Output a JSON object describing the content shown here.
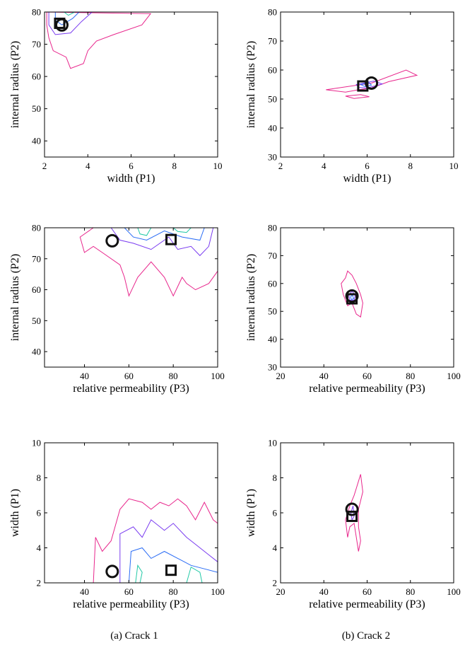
{
  "captions": [
    "(a) Crack 1",
    "(b) Crack 2"
  ],
  "colors": {
    "contour_outer": "#e8268c",
    "contour_mid": "#7a3cf0",
    "contour_inner": "#2a6cf5",
    "contour_core": "#22c9a6",
    "marker": "#111111"
  },
  "chart_data": [
    {
      "type": "contour",
      "panel": "a1",
      "xlabel": "width (P1)",
      "ylabel": "internal radius (P2)",
      "xlim": [
        2,
        10
      ],
      "ylim": [
        35,
        80
      ],
      "xticks": [
        2,
        4,
        6,
        8,
        10
      ],
      "yticks": [
        40,
        50,
        60,
        70,
        80
      ],
      "markers": {
        "circle": [
          2.8,
          76
        ],
        "square": [
          2.7,
          76.5
        ]
      },
      "contours": [
        {
          "level": "outer",
          "points": [
            [
              2.1,
              80
            ],
            [
              6.9,
              79.5
            ],
            [
              6.5,
              76
            ],
            [
              5.2,
              73
            ],
            [
              4.4,
              71
            ],
            [
              4.0,
              68
            ],
            [
              3.8,
              64
            ],
            [
              3.2,
              62.5
            ],
            [
              3.0,
              66
            ],
            [
              2.4,
              68
            ],
            [
              2.2,
              72
            ],
            [
              2.1,
              76
            ]
          ]
        },
        {
          "level": "mid",
          "points": [
            [
              2.2,
              80
            ],
            [
              4.2,
              80
            ],
            [
              3.7,
              77
            ],
            [
              3.2,
              73.5
            ],
            [
              2.5,
              73
            ],
            [
              2.2,
              76
            ]
          ]
        },
        {
          "level": "inner",
          "points": [
            [
              2.5,
              80
            ],
            [
              3.6,
              80
            ],
            [
              3.3,
              78
            ],
            [
              2.8,
              76
            ],
            [
              2.5,
              77.5
            ]
          ]
        },
        {
          "level": "core",
          "points": [
            [
              2.9,
              80
            ],
            [
              3.4,
              80
            ],
            [
              3.1,
              79
            ]
          ]
        }
      ]
    },
    {
      "type": "contour",
      "panel": "b1",
      "xlabel": "width (P1)",
      "ylabel": "internal radius (P2)",
      "xlim": [
        2,
        10
      ],
      "ylim": [
        30,
        80
      ],
      "xticks": [
        2,
        4,
        6,
        8,
        10
      ],
      "yticks": [
        30,
        40,
        50,
        60,
        70,
        80
      ],
      "markers": {
        "circle": [
          6.2,
          55.5
        ],
        "square": [
          5.8,
          54.5
        ]
      },
      "contours": [
        {
          "level": "outer",
          "points": [
            [
              4.1,
              53.2
            ],
            [
              6.2,
              55.5
            ],
            [
              7.8,
              60
            ],
            [
              8.3,
              58.2
            ],
            [
              7.0,
              56
            ],
            [
              6.2,
              53.8
            ],
            [
              5.6,
              53.2
            ],
            [
              5.0,
              52.4
            ]
          ]
        },
        {
          "level": "outer",
          "points": [
            [
              5.0,
              51
            ],
            [
              5.7,
              51.5
            ],
            [
              6.1,
              50.8
            ],
            [
              5.4,
              50.2
            ]
          ]
        },
        {
          "level": "mid",
          "points": [
            [
              5.5,
              55
            ],
            [
              6.3,
              56.2
            ],
            [
              6.7,
              55.2
            ],
            [
              6.0,
              53.8
            ],
            [
              5.6,
              54
            ]
          ]
        },
        {
          "level": "inner",
          "points": [
            [
              5.7,
              55
            ],
            [
              6.1,
              55.6
            ],
            [
              6.2,
              54.8
            ],
            [
              5.9,
              54.3
            ]
          ]
        }
      ]
    },
    {
      "type": "contour",
      "panel": "a2",
      "xlabel": "relative permeability (P3)",
      "ylabel": "internal radius (P2)",
      "xlim": [
        22,
        100
      ],
      "ylim": [
        35,
        80
      ],
      "xticks": [
        40,
        60,
        80,
        100
      ],
      "yticks": [
        40,
        50,
        60,
        70,
        80
      ],
      "markers": {
        "circle": [
          52.5,
          75.8
        ],
        "square": [
          79,
          76.2
        ]
      },
      "contours": [
        {
          "level": "outer",
          "points": [
            [
              38,
              77
            ],
            [
              44,
              80
            ],
            [
              100,
              80
            ],
            [
              100,
              66
            ],
            [
              96,
              62
            ],
            [
              90,
              60
            ],
            [
              86,
              62
            ],
            [
              84,
              64
            ],
            [
              80,
              58
            ],
            [
              76,
              64
            ],
            [
              70,
              69
            ],
            [
              64,
              64
            ],
            [
              60,
              58
            ],
            [
              58,
              64
            ],
            [
              56,
              68
            ],
            [
              48,
              72
            ],
            [
              44,
              74
            ],
            [
              40,
              72
            ]
          ]
        },
        {
          "level": "mid",
          "points": [
            [
              52,
              80
            ],
            [
              98,
              80
            ],
            [
              96,
              74
            ],
            [
              92,
              71
            ],
            [
              88,
              74
            ],
            [
              82,
              73
            ],
            [
              78,
              77
            ],
            [
              70,
              73
            ],
            [
              62,
              75
            ],
            [
              56,
              76
            ]
          ]
        },
        {
          "level": "inner",
          "points": [
            [
              58,
              80
            ],
            [
              94,
              80
            ],
            [
              92,
              76
            ],
            [
              84,
              77
            ],
            [
              76,
              79
            ],
            [
              68,
              76
            ],
            [
              62,
              77
            ]
          ]
        },
        {
          "level": "core",
          "points": [
            [
              64,
              80
            ],
            [
              70,
              80
            ],
            [
              68,
              77.5
            ],
            [
              65,
              78
            ]
          ]
        },
        {
          "level": "core",
          "points": [
            [
              80,
              80
            ],
            [
              88,
              80
            ],
            [
              86,
              78.5
            ],
            [
              82,
              78.8
            ]
          ]
        }
      ]
    },
    {
      "type": "contour",
      "panel": "b2",
      "xlabel": "relative permeability (P3)",
      "ylabel": "internal radius (P2)",
      "xlim": [
        20,
        100
      ],
      "ylim": [
        30,
        80
      ],
      "xticks": [
        20,
        40,
        60,
        80,
        100
      ],
      "yticks": [
        30,
        40,
        50,
        60,
        70,
        80
      ],
      "markers": {
        "circle": [
          53,
          55.5
        ],
        "square": [
          53,
          54.5
        ]
      },
      "contours": [
        {
          "level": "outer",
          "points": [
            [
              51,
              64.5
            ],
            [
              53,
              63
            ],
            [
              55,
              60
            ],
            [
              57,
              56
            ],
            [
              58,
              53
            ],
            [
              57,
              48
            ],
            [
              55,
              49
            ],
            [
              53,
              53
            ],
            [
              51,
              52
            ],
            [
              49,
              56
            ],
            [
              48,
              60
            ],
            [
              50,
              62
            ]
          ]
        },
        {
          "level": "mid",
          "points": [
            [
              51.5,
              56
            ],
            [
              53,
              57.2
            ],
            [
              54.5,
              56
            ],
            [
              54,
              54
            ],
            [
              52,
              54
            ]
          ]
        },
        {
          "level": "inner",
          "points": [
            [
              52.3,
              55.2
            ],
            [
              53.2,
              55.8
            ],
            [
              53.8,
              54.6
            ],
            [
              52.8,
              54.2
            ]
          ]
        }
      ]
    },
    {
      "type": "contour",
      "panel": "a3",
      "xlabel": "relative permeability (P3)",
      "ylabel": "width (P1)",
      "xlim": [
        22,
        100
      ],
      "ylim": [
        2,
        10
      ],
      "xticks": [
        40,
        60,
        80,
        100
      ],
      "yticks": [
        2,
        4,
        6,
        8,
        10
      ],
      "markers": {
        "circle": [
          52.5,
          2.65
        ],
        "square": [
          79,
          2.72
        ]
      },
      "contours": [
        {
          "level": "outer",
          "points": [
            [
              44,
              2
            ],
            [
              45,
              4.6
            ],
            [
              48,
              3.8
            ],
            [
              52,
              4.4
            ],
            [
              56,
              6.2
            ],
            [
              60,
              6.8
            ],
            [
              66,
              6.6
            ],
            [
              70,
              6.2
            ],
            [
              74,
              6.6
            ],
            [
              78,
              6.4
            ],
            [
              82,
              6.8
            ],
            [
              86,
              6.4
            ],
            [
              90,
              5.6
            ],
            [
              94,
              6.6
            ],
            [
              98,
              5.6
            ],
            [
              100,
              5.4
            ],
            [
              100,
              2
            ]
          ]
        },
        {
          "level": "mid",
          "points": [
            [
              56,
              2
            ],
            [
              56,
              4.8
            ],
            [
              62,
              5.2
            ],
            [
              66,
              4.6
            ],
            [
              70,
              5.6
            ],
            [
              76,
              5.0
            ],
            [
              80,
              5.4
            ],
            [
              86,
              4.6
            ],
            [
              90,
              4.2
            ],
            [
              96,
              3.6
            ],
            [
              100,
              3.2
            ],
            [
              100,
              2
            ]
          ]
        },
        {
          "level": "inner",
          "points": [
            [
              60,
              2
            ],
            [
              61,
              3.8
            ],
            [
              66,
              4.0
            ],
            [
              70,
              3.4
            ],
            [
              76,
              3.8
            ],
            [
              82,
              3.4
            ],
            [
              88,
              3.0
            ],
            [
              94,
              2.8
            ],
            [
              100,
              2.6
            ],
            [
              100,
              2
            ]
          ]
        },
        {
          "level": "core",
          "points": [
            [
              63,
              2
            ],
            [
              64,
              3.0
            ],
            [
              66,
              2.6
            ],
            [
              65,
              2
            ]
          ]
        },
        {
          "level": "core",
          "points": [
            [
              86,
              2
            ],
            [
              88,
              2.9
            ],
            [
              92,
              2.6
            ],
            [
              93,
              2
            ]
          ]
        }
      ]
    },
    {
      "type": "contour",
      "panel": "b3",
      "xlabel": "relative permeability (P3)",
      "ylabel": "width (P1)",
      "xlim": [
        20,
        100
      ],
      "ylim": [
        2,
        10
      ],
      "xticks": [
        20,
        40,
        60,
        80,
        100
      ],
      "yticks": [
        2,
        4,
        6,
        8,
        10
      ],
      "markers": {
        "circle": [
          53,
          6.2
        ],
        "square": [
          53,
          5.8
        ]
      },
      "contours": [
        {
          "level": "outer",
          "points": [
            [
              55,
              7.4
            ],
            [
              57,
              8.2
            ],
            [
              58,
              7.2
            ],
            [
              56,
              6.2
            ],
            [
              56,
              5.2
            ],
            [
              57,
              4.4
            ],
            [
              56,
              3.8
            ],
            [
              55,
              4.6
            ],
            [
              54,
              5.4
            ],
            [
              52,
              5.2
            ],
            [
              51,
              4.6
            ],
            [
              50,
              5.6
            ],
            [
              52,
              6.4
            ],
            [
              54,
              7.0
            ]
          ]
        },
        {
          "level": "mid",
          "points": [
            [
              52.5,
              6.0
            ],
            [
              53.5,
              6.4
            ],
            [
              54,
              5.8
            ],
            [
              53,
              5.6
            ]
          ]
        }
      ]
    }
  ]
}
